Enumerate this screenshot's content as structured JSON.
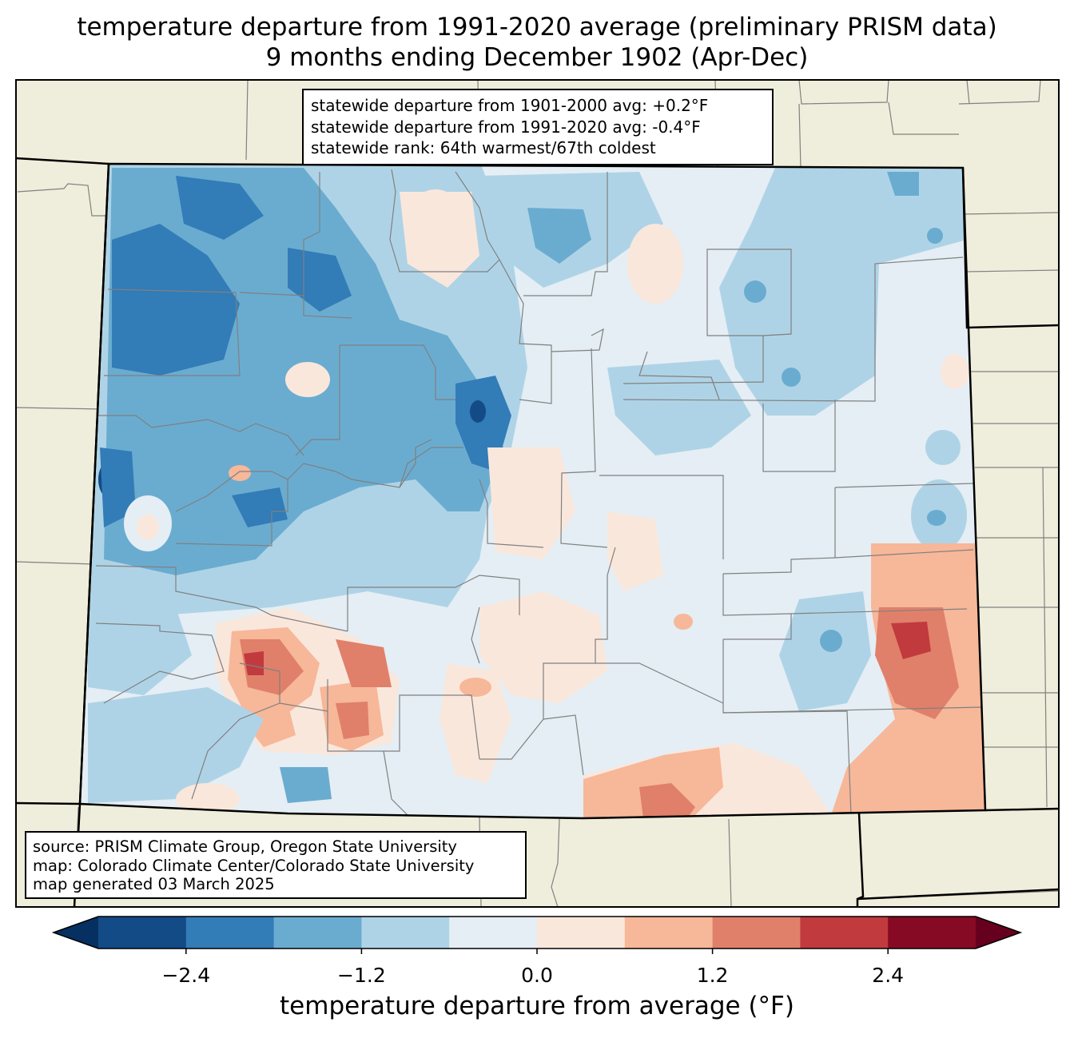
{
  "title": {
    "line1": "temperature departure from 1991-2020 average (preliminary PRISM data)",
    "line2": "9 months ending December 1902 (Apr-Dec)"
  },
  "stats": {
    "line1": "statewide departure from 1901-2000 avg: +0.2°F",
    "line2": "statewide departure from 1991-2020 avg: -0.4°F",
    "line3": "statewide rank: 64th warmest/67th coldest"
  },
  "source": {
    "line1": "source: PRISM Climate Group, Oregon State University",
    "line2": "map: Colorado Climate Center/Colorado State University",
    "line3": "map generated 03 March 2025"
  },
  "colorbar": {
    "label": "temperature departure from average (°F)",
    "ticks": [
      {
        "value": -2.4,
        "label": "−2.4"
      },
      {
        "value": -1.2,
        "label": "−1.2"
      },
      {
        "value": 0.0,
        "label": "0.0"
      },
      {
        "value": 1.2,
        "label": "1.2"
      },
      {
        "value": 2.4,
        "label": "2.4"
      }
    ],
    "bins": [
      {
        "from": -3.0,
        "to": -2.4,
        "color": "#134b87"
      },
      {
        "from": -2.4,
        "to": -1.8,
        "color": "#327cb7"
      },
      {
        "from": -1.8,
        "to": -1.2,
        "color": "#6aacd0"
      },
      {
        "from": -1.2,
        "to": -0.6,
        "color": "#afd3e6"
      },
      {
        "from": -0.6,
        "to": 0.0,
        "color": "#e4eef4"
      },
      {
        "from": 0.0,
        "to": 0.6,
        "color": "#fae7dc"
      },
      {
        "from": 0.6,
        "to": 1.2,
        "color": "#f7b799"
      },
      {
        "from": 1.2,
        "to": 1.8,
        "color": "#e0806a"
      },
      {
        "from": 1.8,
        "to": 2.4,
        "color": "#c13a3e"
      },
      {
        "from": 2.4,
        "to": 3.0,
        "color": "#870a24"
      }
    ],
    "under_color": "#053061",
    "over_color": "#67001f",
    "range": [
      -3.0,
      3.0
    ]
  },
  "colors": {
    "land": "#efeedc",
    "state_border": "#000000",
    "county_border": "#808080"
  }
}
